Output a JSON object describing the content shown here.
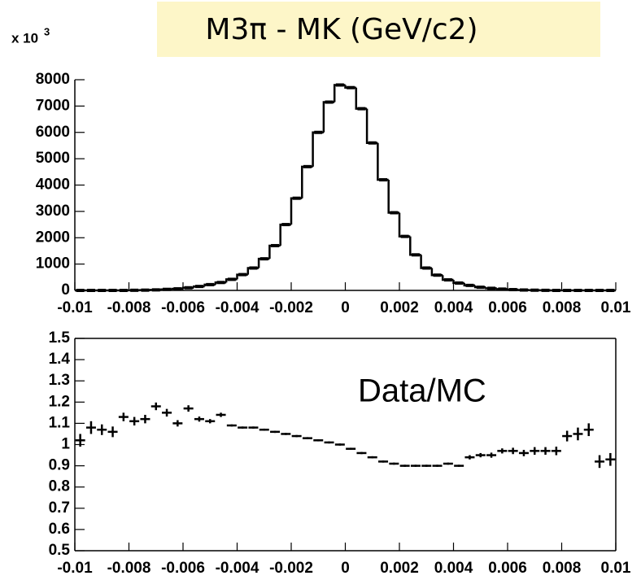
{
  "chart_data": [
    {
      "type": "histogram",
      "title": "M3π - MK  (GeV/c2)",
      "multiplier": "x 10",
      "multiplier_exponent": "3",
      "bins": [
        -0.01,
        -0.0096,
        -0.0092,
        -0.0088,
        -0.0084,
        -0.008,
        -0.0076,
        -0.0072,
        -0.0068,
        -0.0064,
        -0.006,
        -0.0056,
        -0.0052,
        -0.0048,
        -0.0044,
        -0.004,
        -0.0036,
        -0.0032,
        -0.0028,
        -0.0024,
        -0.002,
        -0.0016,
        -0.0012,
        -0.0008,
        -0.0004,
        0,
        0.0004,
        0.0008,
        0.0012,
        0.0016,
        0.002,
        0.0024,
        0.0028,
        0.0032,
        0.0036,
        0.004,
        0.0044,
        0.0048,
        0.0052,
        0.0056,
        0.006,
        0.0064,
        0.0068,
        0.0072,
        0.0076,
        0.008,
        0.0084,
        0.0088,
        0.0092,
        0.0096,
        0.01
      ],
      "counts": [
        0,
        0,
        0,
        0,
        0,
        5,
        10,
        20,
        40,
        60,
        100,
        150,
        220,
        300,
        420,
        600,
        850,
        1200,
        1700,
        2500,
        3500,
        4700,
        6000,
        7150,
        7800,
        7700,
        6900,
        5600,
        4200,
        2950,
        2050,
        1350,
        850,
        580,
        400,
        280,
        190,
        120,
        80,
        50,
        30,
        15,
        8,
        3,
        0,
        0,
        0,
        0,
        0,
        0
      ],
      "data_points": [
        0,
        0,
        0,
        0,
        0,
        5,
        10,
        20,
        40,
        60,
        100,
        150,
        220,
        300,
        420,
        600,
        850,
        1200,
        1700,
        2500,
        3500,
        4700,
        6000,
        7150,
        7800,
        7700,
        6900,
        5600,
        4200,
        2950,
        2050,
        1350,
        850,
        580,
        400,
        280,
        190,
        120,
        80,
        50,
        30,
        15,
        8,
        3,
        0,
        0,
        0,
        0,
        0,
        0
      ],
      "color": "#000000",
      "xlim": [
        -0.01,
        0.01
      ],
      "xticks": [
        -0.01,
        -0.008,
        -0.006,
        -0.004,
        -0.002,
        0,
        0.002,
        0.004,
        0.006,
        0.008,
        0.01
      ],
      "ylim": [
        0,
        8000
      ],
      "yticks": [
        0,
        1000,
        2000,
        3000,
        4000,
        5000,
        6000,
        7000,
        8000
      ]
    },
    {
      "type": "scatter",
      "annotation": "Data/MC",
      "x": [
        -0.0098,
        -0.0094,
        -0.009,
        -0.0086,
        -0.0082,
        -0.0078,
        -0.0074,
        -0.007,
        -0.0066,
        -0.0062,
        -0.0058,
        -0.0054,
        -0.005,
        -0.0046,
        -0.0042,
        -0.0038,
        -0.0034,
        -0.003,
        -0.0026,
        -0.0022,
        -0.0018,
        -0.0014,
        -0.001,
        -0.0006,
        -0.0002,
        0.0002,
        0.0006,
        0.001,
        0.0014,
        0.0018,
        0.0022,
        0.0026,
        0.003,
        0.0034,
        0.0038,
        0.0042,
        0.0046,
        0.005,
        0.0054,
        0.0058,
        0.0062,
        0.0066,
        0.007,
        0.0074,
        0.0078,
        0.0082,
        0.0086,
        0.009,
        0.0094,
        0.0098
      ],
      "values": [
        1.02,
        1.08,
        1.07,
        1.06,
        1.13,
        1.11,
        1.12,
        1.18,
        1.15,
        1.1,
        1.17,
        1.12,
        1.11,
        1.14,
        1.09,
        1.08,
        1.08,
        1.07,
        1.06,
        1.05,
        1.04,
        1.03,
        1.02,
        1.01,
        1.0,
        0.98,
        0.96,
        0.94,
        0.92,
        0.91,
        0.9,
        0.9,
        0.9,
        0.9,
        0.91,
        0.9,
        0.94,
        0.95,
        0.95,
        0.97,
        0.97,
        0.96,
        0.97,
        0.97,
        0.97,
        1.04,
        1.05,
        1.07,
        0.92,
        0.93
      ],
      "yerr": [
        0.03,
        0.03,
        0.025,
        0.025,
        0.02,
        0.02,
        0.02,
        0.018,
        0.018,
        0.015,
        0.015,
        0.012,
        0.01,
        0.01,
        0.005,
        0.005,
        0.005,
        0.005,
        0.005,
        0.005,
        0.005,
        0.005,
        0.005,
        0.005,
        0.005,
        0.005,
        0.005,
        0.005,
        0.005,
        0.005,
        0.005,
        0.005,
        0.005,
        0.005,
        0.005,
        0.005,
        0.01,
        0.01,
        0.012,
        0.012,
        0.015,
        0.015,
        0.018,
        0.018,
        0.02,
        0.025,
        0.03,
        0.03,
        0.03,
        0.03
      ],
      "color": "#000000",
      "xlim": [
        -0.01,
        0.01
      ],
      "xticks": [
        -0.01,
        -0.008,
        -0.006,
        -0.004,
        -0.002,
        0,
        0.002,
        0.004,
        0.006,
        0.008,
        0.01
      ],
      "ylim": [
        0.5,
        1.5
      ],
      "yticks": [
        0.5,
        0.6,
        0.7,
        0.8,
        0.9,
        1,
        1.1,
        1.2,
        1.3,
        1.4,
        1.5
      ]
    }
  ]
}
